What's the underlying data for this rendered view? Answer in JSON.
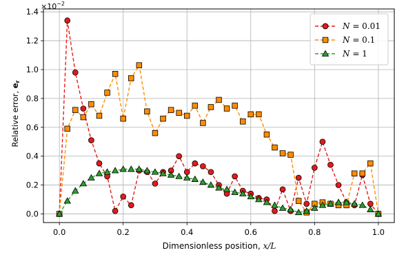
{
  "chart_data": {
    "type": "line",
    "xlabel_text": "Dimensionless position, ",
    "xlabel_math": "x/L",
    "ylabel_text": "Relative error, ",
    "ylabel_math": "e",
    "ylabel_sub": "r",
    "scale_base": "×10",
    "scale_exp": "−2",
    "xlim": [
      -0.05,
      1.05
    ],
    "ylim": [
      -0.06,
      1.42
    ],
    "grid": true,
    "legend_position": "top-right",
    "xticks": [
      0.0,
      0.2,
      0.4,
      0.6,
      0.8,
      1.0
    ],
    "xtick_labels": [
      "0.0",
      "0.2",
      "0.4",
      "0.6",
      "0.8",
      "1.0"
    ],
    "yticks": [
      0.0,
      0.2,
      0.4,
      0.6,
      0.8,
      1.0,
      1.2,
      1.4
    ],
    "ytick_labels": [
      "0.0",
      "0.2",
      "0.4",
      "0.6",
      "0.8",
      "1.0",
      "1.2",
      "1.4"
    ],
    "x": [
      0.0,
      0.025,
      0.05,
      0.075,
      0.1,
      0.125,
      0.15,
      0.175,
      0.2,
      0.225,
      0.25,
      0.275,
      0.3,
      0.325,
      0.35,
      0.375,
      0.4,
      0.425,
      0.45,
      0.475,
      0.5,
      0.525,
      0.55,
      0.575,
      0.6,
      0.625,
      0.65,
      0.675,
      0.7,
      0.725,
      0.75,
      0.775,
      0.8,
      0.825,
      0.85,
      0.875,
      0.9,
      0.925,
      0.95,
      0.975,
      1.0
    ],
    "series": [
      {
        "name_math": "N",
        "name_value": "= 0.01",
        "color": "#e31a1c",
        "marker": "circle",
        "values": [
          0.0,
          1.34,
          0.98,
          0.73,
          0.51,
          0.35,
          0.26,
          0.02,
          0.12,
          0.06,
          0.3,
          0.29,
          0.21,
          0.29,
          0.3,
          0.4,
          0.29,
          0.35,
          0.33,
          0.29,
          0.2,
          0.14,
          0.26,
          0.16,
          0.14,
          0.11,
          0.1,
          0.02,
          0.17,
          0.02,
          0.25,
          0.07,
          0.32,
          0.5,
          0.34,
          0.2,
          0.08,
          0.06,
          0.27,
          0.07,
          0.0
        ]
      },
      {
        "name_math": "N",
        "name_value": "= 0.1",
        "color": "#ff8c00",
        "marker": "square",
        "values": [
          0.0,
          0.59,
          0.72,
          0.67,
          0.76,
          0.68,
          0.84,
          0.97,
          0.66,
          0.94,
          1.03,
          0.71,
          0.56,
          0.66,
          0.72,
          0.7,
          0.68,
          0.75,
          0.63,
          0.74,
          0.79,
          0.73,
          0.75,
          0.64,
          0.69,
          0.69,
          0.55,
          0.46,
          0.42,
          0.41,
          0.09,
          0.01,
          0.07,
          0.08,
          0.07,
          0.06,
          0.06,
          0.28,
          0.28,
          0.35,
          0.0
        ]
      },
      {
        "name_math": "N",
        "name_value": "= 1",
        "color": "#2ca02c",
        "marker": "triangle",
        "values": [
          0.0,
          0.09,
          0.16,
          0.21,
          0.25,
          0.28,
          0.29,
          0.3,
          0.31,
          0.31,
          0.31,
          0.3,
          0.29,
          0.28,
          0.27,
          0.26,
          0.25,
          0.24,
          0.22,
          0.2,
          0.18,
          0.17,
          0.15,
          0.14,
          0.12,
          0.1,
          0.08,
          0.06,
          0.04,
          0.03,
          0.01,
          0.02,
          0.04,
          0.06,
          0.07,
          0.08,
          0.08,
          0.07,
          0.06,
          0.03,
          0.0
        ]
      }
    ]
  }
}
